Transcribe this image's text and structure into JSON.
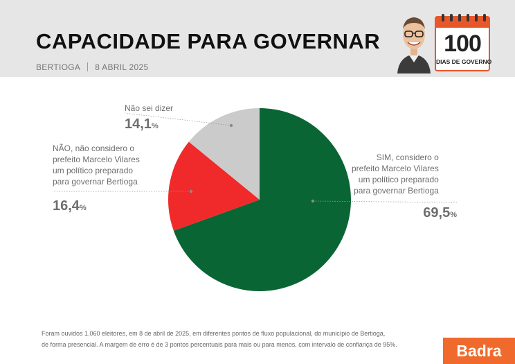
{
  "header": {
    "title": "CAPACIDADE PARA GOVERNAR",
    "location": "BERTIOGA",
    "date": "8 ABRIL 2025",
    "badge_number": "100",
    "badge_label": "DIAS DE GOVERNO",
    "accent_color": "#e8572a"
  },
  "chart_data": {
    "type": "pie",
    "unit": "%",
    "slices": [
      {
        "label_lines": [
          "SIM, considero o",
          "prefeito Marcelo Vilares",
          "um político preparado",
          "para governar Bertioga"
        ],
        "value": 69.5,
        "display": "69,5",
        "color": "#0a6534"
      },
      {
        "label_lines": [
          "NÃO, não considero o",
          "prefeito Marcelo Vilares",
          "um político preparado",
          "para governar Bertioga"
        ],
        "value": 16.4,
        "display": "16,4",
        "color": "#f02a2a"
      },
      {
        "label_lines": [
          "Não sei dizer"
        ],
        "value": 14.1,
        "display": "14,1",
        "color": "#cbcbcb"
      }
    ]
  },
  "footnote": {
    "line1": "Foram ouvidos 1.060 eleitores, em 8 de abril de 2025, em diferentes pontos de fluxo populacional, do município de Bertioga,",
    "line2": "de forma presencial. A margem de erro é de 3 pontos percentuais para mais ou para menos, com intervalo de confiança de 95%."
  },
  "logo": {
    "text": "Badra",
    "color": "#ef6a2c"
  }
}
